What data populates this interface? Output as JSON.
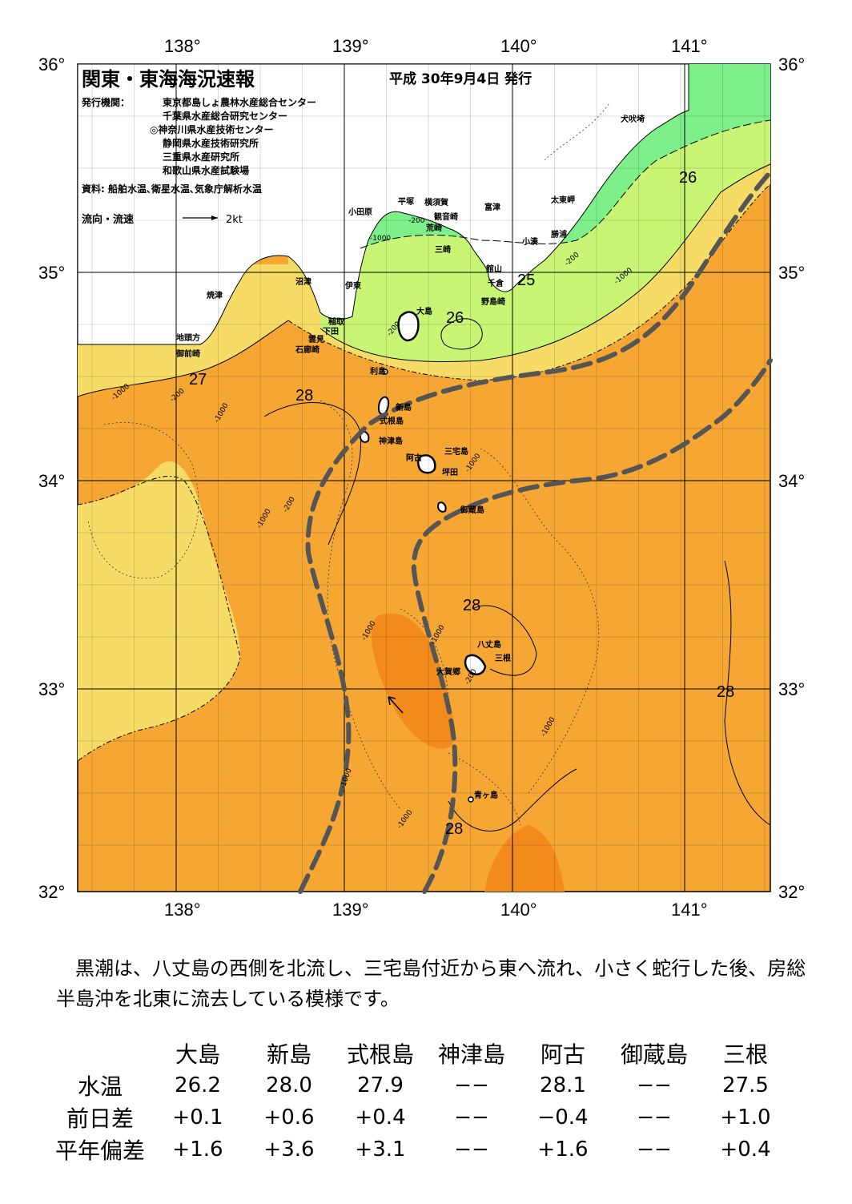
{
  "title": "関東・東海海況速報",
  "date": "平成 30年9月4日 発行",
  "publisher_label": "発行機関：",
  "publishers": [
    "東京都島しょ農林水産総合センター",
    "千葉県水産総合研究センター",
    "◎神奈川県水産技術センター",
    "静岡県水産技術研究所",
    "三重県水産研究所",
    "和歌山県水産試験場"
  ],
  "source": "資料: 船舶水温､衛星水温､気象庁解析水温",
  "current_legend": "流向・流速",
  "current_scale": "2kt",
  "lon_labels": [
    "138°",
    "139°",
    "140°",
    "141°"
  ],
  "lat_labels": [
    "36°",
    "35°",
    "34°",
    "33°",
    "32°"
  ],
  "place_names": [
    "犬吠埼",
    "太東岬",
    "勝浦",
    "小湊",
    "富津",
    "横須賀",
    "平塚",
    "小田原",
    "観音崎",
    "荒崎",
    "三崎",
    "館山",
    "千倉",
    "野島崎",
    "沼津",
    "伊東",
    "焼津",
    "稲取",
    "下田",
    "雲見",
    "石廊崎",
    "地頭方",
    "御前崎",
    "大島",
    "利島",
    "新島",
    "式根島",
    "神津島",
    "三宅島",
    "阿古",
    "坪田",
    "御蔵島",
    "八丈島",
    "三根",
    "大賀郷",
    "青ヶ島"
  ],
  "temp_labels": [
    "26",
    "26",
    "25",
    "27",
    "28",
    "28",
    "28",
    "28"
  ],
  "depth_labels": [
    "-1000",
    "-200"
  ],
  "summary": "黒潮は、八丈島の西側を北流し、三宅島付近から東へ流れ、小さく蛇行した後、房総半島沖を北東に流去している模様です。",
  "table": {
    "columns": [
      "大島",
      "新島",
      "式根島",
      "神津島",
      "阿古",
      "御蔵島",
      "三根"
    ],
    "rows": [
      {
        "label": "水温",
        "values": [
          "26.2",
          "28.0",
          "27.9",
          "−−",
          "28.1",
          "−−",
          "27.5"
        ]
      },
      {
        "label": "前日差",
        "values": [
          "+0.1",
          "+0.6",
          "+0.4",
          "−−",
          "−0.4",
          "−−",
          "+1.0"
        ]
      },
      {
        "label": "平年偏差",
        "values": [
          "+1.6",
          "+3.6",
          "+3.1",
          "−−",
          "+1.6",
          "−−",
          "+0.4"
        ]
      }
    ]
  },
  "colors": {
    "c25": "#7df08a",
    "c26": "#c8f574",
    "c27": "#f6dc66",
    "c28": "#f5a633",
    "c29": "#f28a1c",
    "kuroshio": "#555555"
  }
}
